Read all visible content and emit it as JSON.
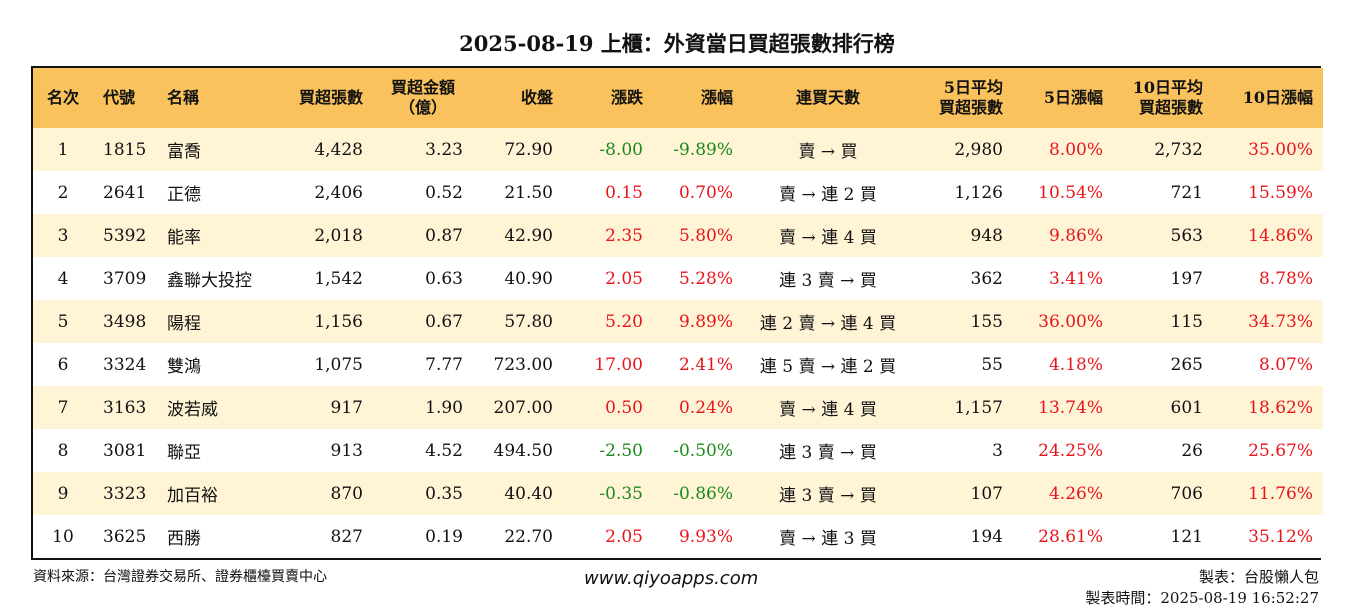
{
  "title": "2025-08-19 上櫃：外資當日買超張數排行榜",
  "headers": {
    "rank": "名次",
    "code": "代號",
    "name": "名稱",
    "net_buy_lots": "買超張數",
    "net_buy_amount_l1": "買超金額",
    "net_buy_amount_l2": "（億）",
    "close": "收盤",
    "change": "漲跌",
    "change_pct": "漲幅",
    "streak": "連買天數",
    "avg5_l1": "5日平均",
    "avg5_l2": "買超張數",
    "chg5": "5日漲幅",
    "avg10_l1": "10日平均",
    "avg10_l2": "買超張數",
    "chg10": "10日漲幅"
  },
  "rows": [
    {
      "rank": "1",
      "code": "1815",
      "name": "富喬",
      "lots": "4,428",
      "amount": "3.23",
      "close": "72.90",
      "change": "-8.00",
      "pct": "-9.89%",
      "streak": "賣 → 買",
      "avg5": "2,980",
      "chg5": "8.00%",
      "avg10": "2,732",
      "chg10": "35.00%"
    },
    {
      "rank": "2",
      "code": "2641",
      "name": "正德",
      "lots": "2,406",
      "amount": "0.52",
      "close": "21.50",
      "change": "0.15",
      "pct": "0.70%",
      "streak": "賣 → 連 2 買",
      "avg5": "1,126",
      "chg5": "10.54%",
      "avg10": "721",
      "chg10": "15.59%"
    },
    {
      "rank": "3",
      "code": "5392",
      "name": "能率",
      "lots": "2,018",
      "amount": "0.87",
      "close": "42.90",
      "change": "2.35",
      "pct": "5.80%",
      "streak": "賣 → 連 4 買",
      "avg5": "948",
      "chg5": "9.86%",
      "avg10": "563",
      "chg10": "14.86%"
    },
    {
      "rank": "4",
      "code": "3709",
      "name": "鑫聯大投控",
      "lots": "1,542",
      "amount": "0.63",
      "close": "40.90",
      "change": "2.05",
      "pct": "5.28%",
      "streak": "連 3 賣 → 買",
      "avg5": "362",
      "chg5": "3.41%",
      "avg10": "197",
      "chg10": "8.78%"
    },
    {
      "rank": "5",
      "code": "3498",
      "name": "陽程",
      "lots": "1,156",
      "amount": "0.67",
      "close": "57.80",
      "change": "5.20",
      "pct": "9.89%",
      "streak": "連 2 賣 → 連 4 買",
      "avg5": "155",
      "chg5": "36.00%",
      "avg10": "115",
      "chg10": "34.73%"
    },
    {
      "rank": "6",
      "code": "3324",
      "name": "雙鴻",
      "lots": "1,075",
      "amount": "7.77",
      "close": "723.00",
      "change": "17.00",
      "pct": "2.41%",
      "streak": "連 5 賣 → 連 2 買",
      "avg5": "55",
      "chg5": "4.18%",
      "avg10": "265",
      "chg10": "8.07%"
    },
    {
      "rank": "7",
      "code": "3163",
      "name": "波若威",
      "lots": "917",
      "amount": "1.90",
      "close": "207.00",
      "change": "0.50",
      "pct": "0.24%",
      "streak": "賣 → 連 4 買",
      "avg5": "1,157",
      "chg5": "13.74%",
      "avg10": "601",
      "chg10": "18.62%"
    },
    {
      "rank": "8",
      "code": "3081",
      "name": "聯亞",
      "lots": "913",
      "amount": "4.52",
      "close": "494.50",
      "change": "-2.50",
      "pct": "-0.50%",
      "streak": "連 3 賣 → 買",
      "avg5": "3",
      "chg5": "24.25%",
      "avg10": "26",
      "chg10": "25.67%"
    },
    {
      "rank": "9",
      "code": "3323",
      "name": "加百裕",
      "lots": "870",
      "amount": "0.35",
      "close": "40.40",
      "change": "-0.35",
      "pct": "-0.86%",
      "streak": "連 3 賣 → 買",
      "avg5": "107",
      "chg5": "4.26%",
      "avg10": "706",
      "chg10": "11.76%"
    },
    {
      "rank": "10",
      "code": "3625",
      "name": "西勝",
      "lots": "827",
      "amount": "0.19",
      "close": "22.70",
      "change": "2.05",
      "pct": "9.93%",
      "streak": "賣 → 連 3 買",
      "avg5": "194",
      "chg5": "28.61%",
      "avg10": "121",
      "chg10": "35.12%"
    }
  ],
  "footer": {
    "source": "資料來源：台灣證券交易所、證券櫃檯買賣中心",
    "website": "www.qiyoapps.com",
    "maker": "製表：台股懶人包",
    "made_time": "製表時間：2025-08-19 16:52:27"
  },
  "colors": {
    "header_bg": "#f9c25c",
    "odd_row_bg": "#fff4d6",
    "positive": "#e8141a",
    "negative": "#1a8a1a"
  }
}
